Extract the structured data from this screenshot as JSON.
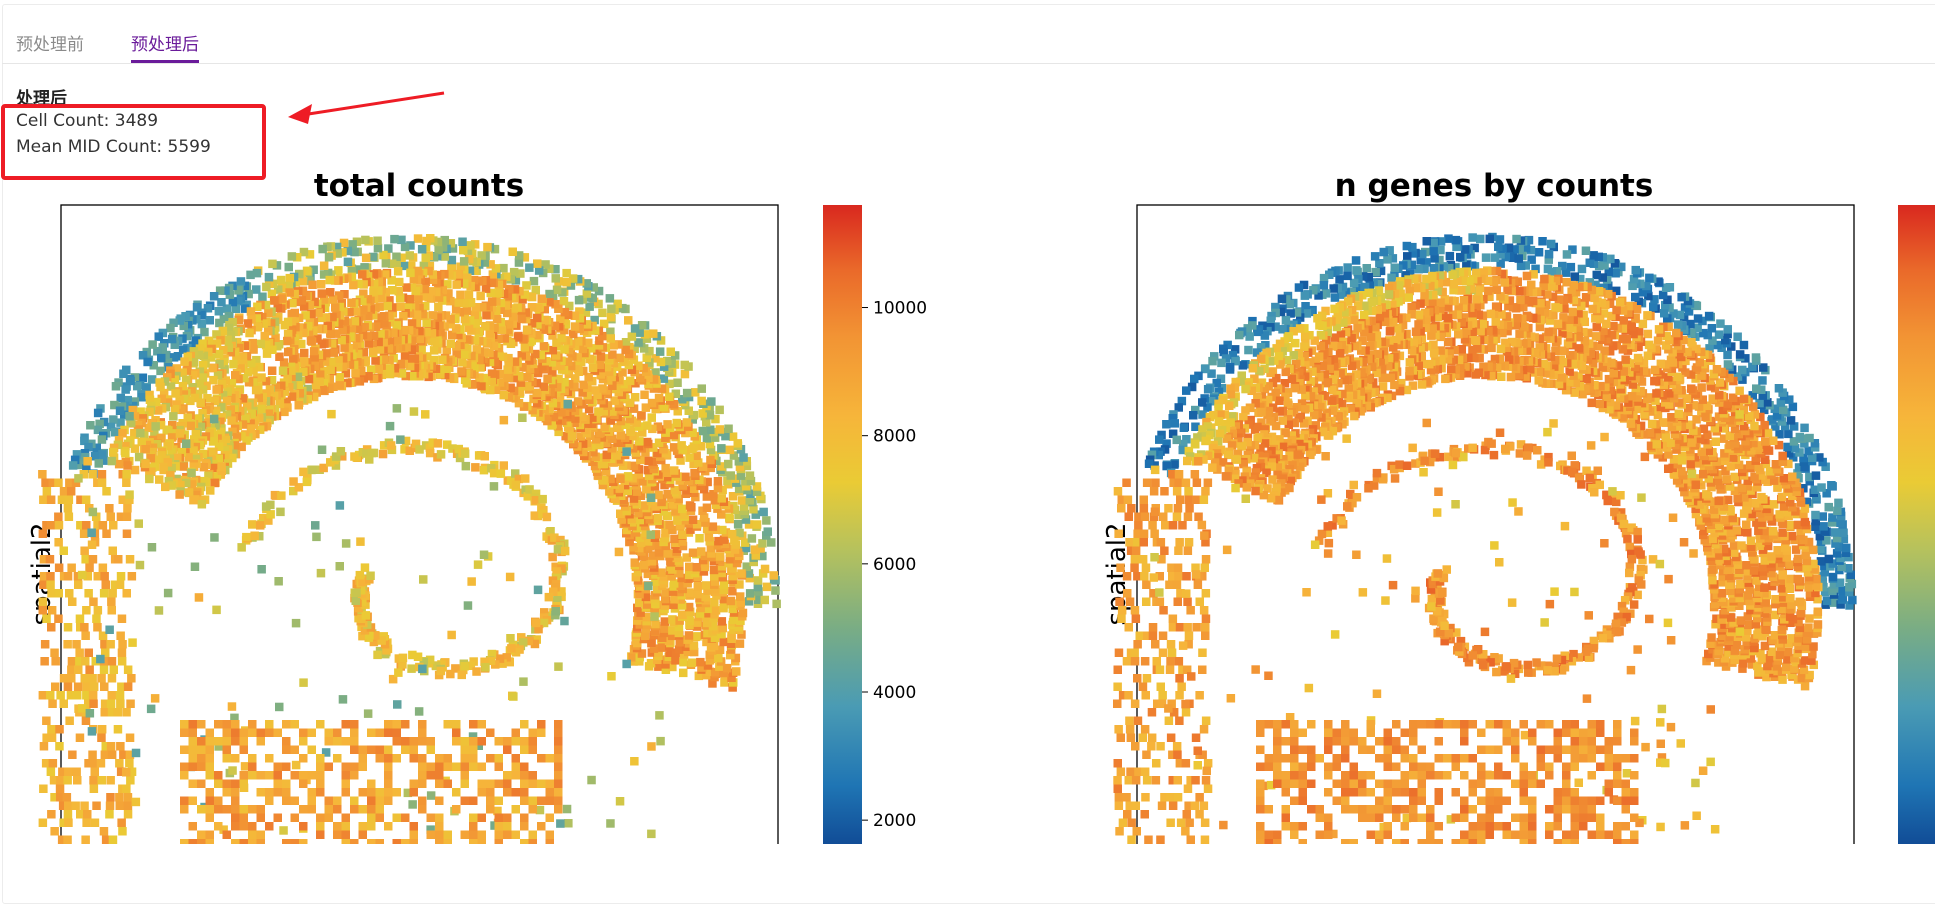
{
  "tabs": [
    {
      "label": "预处理前",
      "active": false
    },
    {
      "label": "预处理后",
      "active": true
    }
  ],
  "summary": {
    "title": "处理后",
    "cell_count": "Cell Count: 3489",
    "mean_mid_count": "Mean MID Count: 5599"
  },
  "colors": {
    "accent": "#6a1b9a",
    "highlight": "#ee1c25",
    "colormap": [
      "#0c3e8c",
      "#1f75b4",
      "#4a9bb4",
      "#7aad84",
      "#b7c25c",
      "#eacb35",
      "#f6b53a",
      "#f29434",
      "#ea6a2a",
      "#d9281f"
    ]
  },
  "chart_data": [
    {
      "type": "scatter",
      "title": "total counts",
      "ylabel": "spatial2",
      "colorbar": {
        "ticks": [
          2000,
          4000,
          6000,
          8000,
          10000
        ],
        "vmin": 1300,
        "vmax": 11600,
        "colormap": "RdYlBu_r"
      }
    },
    {
      "type": "scatter",
      "title": "n genes by counts",
      "ylabel": "spatial2",
      "colorbar": {
        "ticks": [],
        "colormap": "RdYlBu_r"
      }
    }
  ]
}
